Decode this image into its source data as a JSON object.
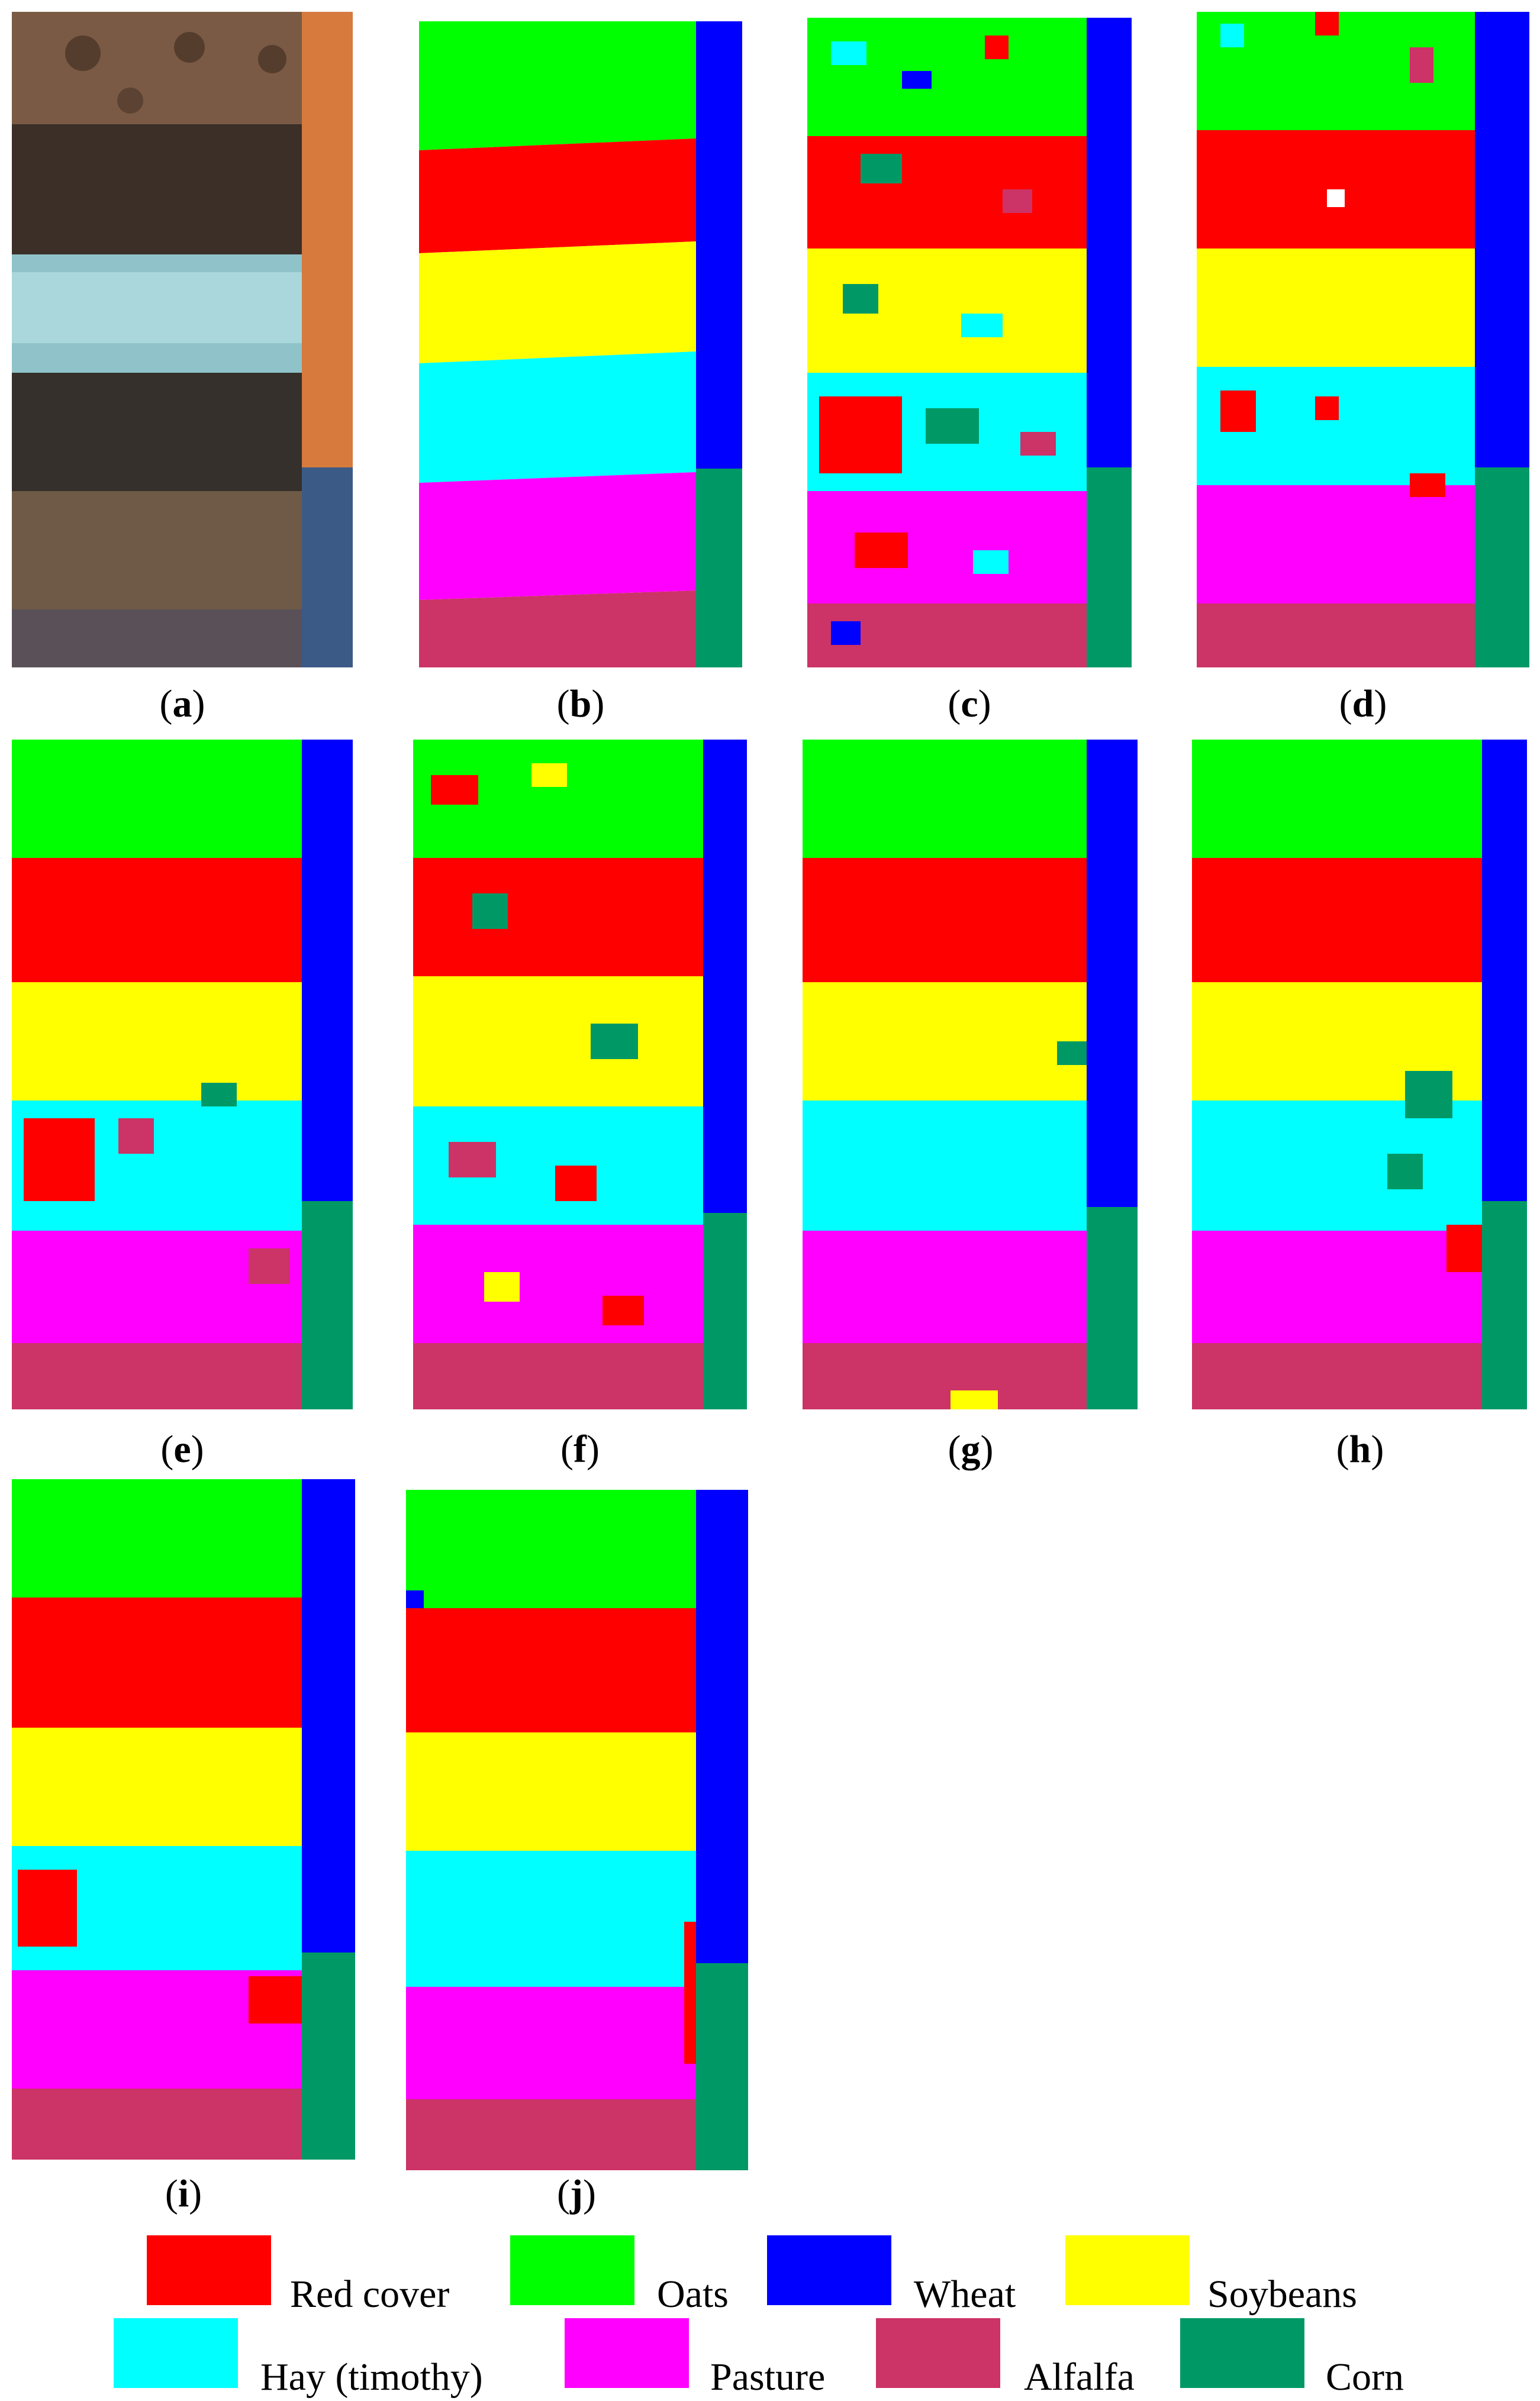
{
  "panels": [
    {
      "id": "a",
      "caption": "a"
    },
    {
      "id": "b",
      "caption": "b"
    },
    {
      "id": "c",
      "caption": "c"
    },
    {
      "id": "d",
      "caption": "d"
    },
    {
      "id": "e",
      "caption": "e"
    },
    {
      "id": "f",
      "caption": "f"
    },
    {
      "id": "g",
      "caption": "g"
    },
    {
      "id": "h",
      "caption": "h"
    },
    {
      "id": "i",
      "caption": "i"
    },
    {
      "id": "j",
      "caption": "j"
    }
  ],
  "legend": [
    {
      "label": "Red cover",
      "color": "#ff0000"
    },
    {
      "label": "Oats",
      "color": "#00ff00"
    },
    {
      "label": "Wheat",
      "color": "#0000ff"
    },
    {
      "label": "Soybeans",
      "color": "#ffff00"
    },
    {
      "label": "Hay (timothy)",
      "color": "#00ffff"
    },
    {
      "label": "Pasture",
      "color": "#ff00ff"
    },
    {
      "label": "Alfalfa",
      "color": "#cc3366"
    },
    {
      "label": "Corn",
      "color": "#009966"
    }
  ]
}
